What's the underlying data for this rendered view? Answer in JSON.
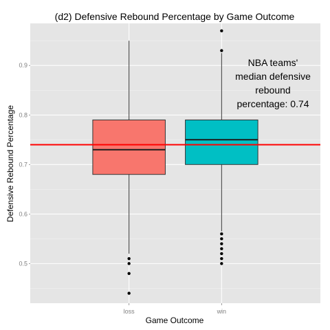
{
  "chart_data": {
    "type": "boxplot",
    "title": "(d2) Defensive Rebound Percentage by Game Outcome",
    "xlabel": "Game Outcome",
    "ylabel": "Defensive Rebound Percentage",
    "ylim": [
      0.42,
      0.985
    ],
    "y_ticks": [
      "0.5",
      "0.6",
      "0.7",
      "0.8",
      "0.9"
    ],
    "grid": true,
    "categories": [
      "loss",
      "win"
    ],
    "boxes": [
      {
        "category": "loss",
        "color": "#F8766D",
        "q1": 0.68,
        "median": 0.73,
        "q3": 0.79,
        "whisker_low": 0.52,
        "whisker_high": 0.95,
        "outliers": [
          0.51,
          0.5,
          0.48,
          0.44
        ]
      },
      {
        "category": "win",
        "color": "#00BFC4",
        "q1": 0.7,
        "median": 0.75,
        "q3": 0.79,
        "whisker_low": 0.565,
        "whisker_high": 0.925,
        "outliers": [
          0.97,
          0.93,
          0.56,
          0.55,
          0.54,
          0.53,
          0.52,
          0.51,
          0.5
        ]
      }
    ],
    "reference_line": {
      "value": 0.74,
      "color": "#FF0000"
    },
    "annotation_lines": [
      "NBA teams'",
      "median defensive",
      "rebound",
      "percentage: 0.74"
    ]
  },
  "colors": {
    "panel_background": "#E5E5E5",
    "grid_major": "#FFFFFF",
    "grid_minor": "#F2F2F2"
  }
}
